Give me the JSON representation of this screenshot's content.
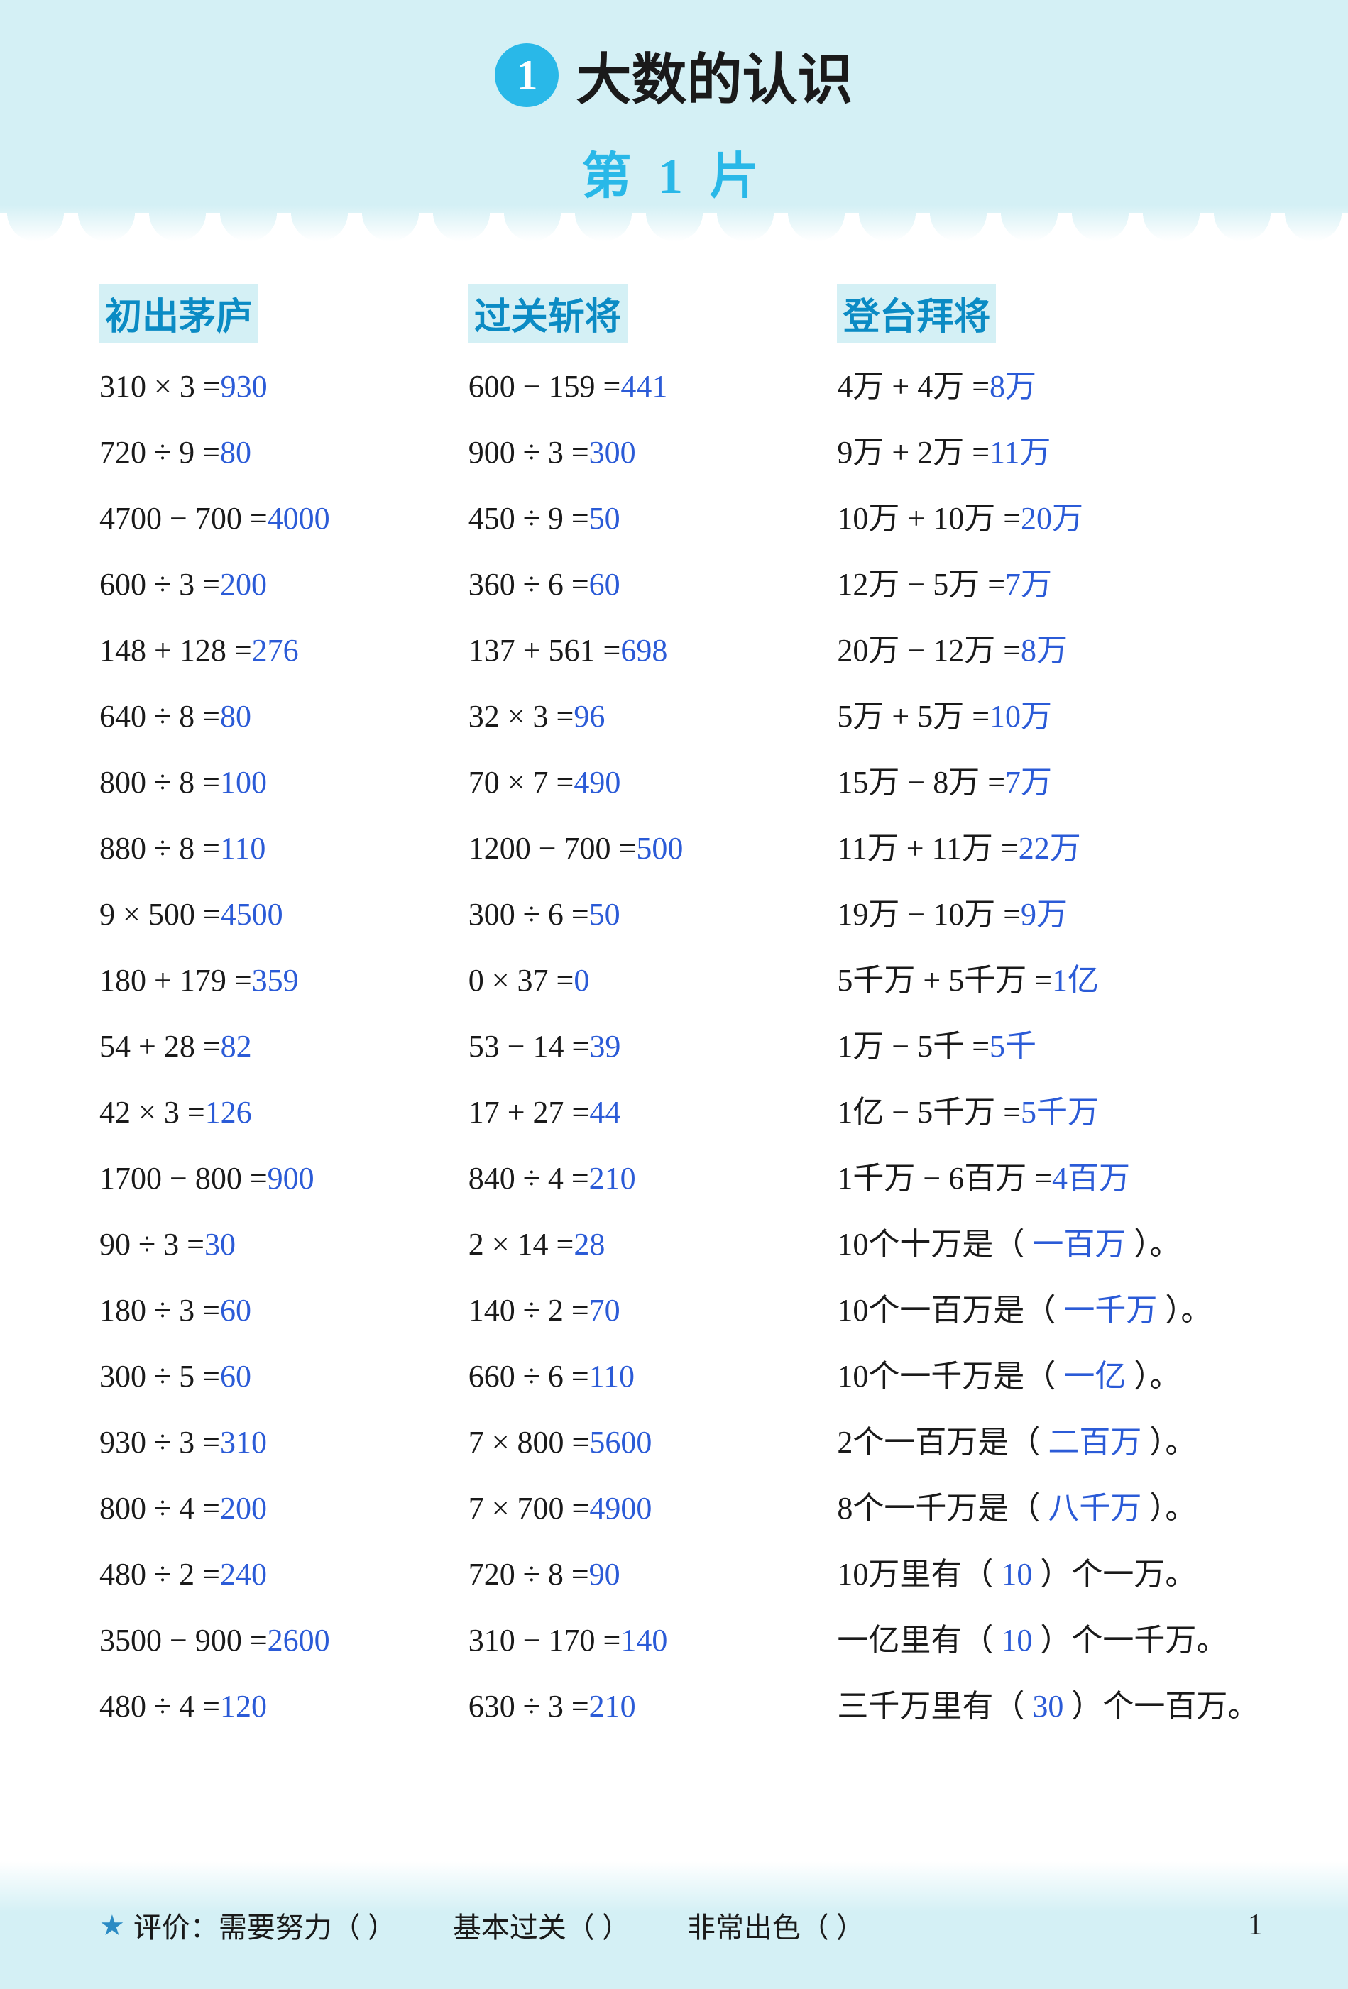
{
  "chapter": {
    "number": "1",
    "title": "大数的认识",
    "subtitle": "第 1 片"
  },
  "columns": {
    "col1": {
      "header": "初出茅庐",
      "rows": [
        {
          "q": "310 × 3 =",
          "a": "930"
        },
        {
          "q": "720 ÷ 9 =",
          "a": "80"
        },
        {
          "q": "4700 − 700 =",
          "a": "4000"
        },
        {
          "q": "600 ÷ 3 =",
          "a": "200"
        },
        {
          "q": "148 + 128 =",
          "a": "276"
        },
        {
          "q": "640 ÷ 8 =",
          "a": "80"
        },
        {
          "q": "800 ÷ 8 =",
          "a": "100"
        },
        {
          "q": "880 ÷ 8 =",
          "a": "110"
        },
        {
          "q": "9 × 500 =",
          "a": "4500"
        },
        {
          "q": "180 + 179 =",
          "a": "359"
        },
        {
          "q": "54 + 28 =",
          "a": "82"
        },
        {
          "q": "42 × 3 =",
          "a": "126"
        },
        {
          "q": "1700 − 800 =",
          "a": "900"
        },
        {
          "q": "90 ÷ 3 =",
          "a": "30"
        },
        {
          "q": "180 ÷ 3 =",
          "a": "60"
        },
        {
          "q": "300 ÷ 5 =",
          "a": "60"
        },
        {
          "q": "930 ÷ 3 =",
          "a": "310"
        },
        {
          "q": "800 ÷ 4 =",
          "a": "200"
        },
        {
          "q": "480 ÷ 2 =",
          "a": "240"
        },
        {
          "q": "3500 − 900 =",
          "a": "2600"
        },
        {
          "q": "480 ÷ 4 =",
          "a": "120"
        }
      ]
    },
    "col2": {
      "header": "过关斩将",
      "rows": [
        {
          "q": "600 − 159 =",
          "a": "441"
        },
        {
          "q": "900 ÷ 3 =",
          "a": "300"
        },
        {
          "q": "450 ÷ 9 =",
          "a": "50"
        },
        {
          "q": "360 ÷ 6 =",
          "a": "60"
        },
        {
          "q": "137 + 561 =",
          "a": "698"
        },
        {
          "q": "32 × 3 =",
          "a": "96"
        },
        {
          "q": "70 × 7 =",
          "a": "490"
        },
        {
          "q": "1200 − 700 =",
          "a": "500"
        },
        {
          "q": "300 ÷ 6 =",
          "a": "50"
        },
        {
          "q": "0 × 37 =",
          "a": "0"
        },
        {
          "q": "53 − 14 =",
          "a": "39"
        },
        {
          "q": "17 + 27 =",
          "a": "44"
        },
        {
          "q": "840 ÷ 4 =",
          "a": "210"
        },
        {
          "q": "2 × 14 =",
          "a": "28"
        },
        {
          "q": "140 ÷ 2 =",
          "a": "70"
        },
        {
          "q": "660 ÷ 6 =",
          "a": "110"
        },
        {
          "q": "7 × 800 =",
          "a": "5600"
        },
        {
          "q": "7 × 700 =",
          "a": "4900"
        },
        {
          "q": "720 ÷ 8 =",
          "a": "90"
        },
        {
          "q": "310 − 170 =",
          "a": "140"
        },
        {
          "q": "630 ÷ 3 =",
          "a": "210"
        }
      ]
    },
    "col3": {
      "header": "登台拜将",
      "rows": [
        {
          "type": "eq",
          "q": "4万 + 4万 =",
          "a": "8万"
        },
        {
          "type": "eq",
          "q": "9万 + 2万 =",
          "a": "11万"
        },
        {
          "type": "eq",
          "q": "10万 + 10万 =",
          "a": "20万"
        },
        {
          "type": "eq",
          "q": "12万 − 5万 =",
          "a": "7万"
        },
        {
          "type": "eq",
          "q": "20万 − 12万 =",
          "a": "8万"
        },
        {
          "type": "eq",
          "q": "5万 + 5万 =",
          "a": "10万"
        },
        {
          "type": "eq",
          "q": "15万 − 8万 =",
          "a": "7万"
        },
        {
          "type": "eq",
          "q": "11万 + 11万 =",
          "a": "22万"
        },
        {
          "type": "eq",
          "q": "19万 − 10万 =",
          "a": "9万"
        },
        {
          "type": "eq",
          "q": "5千万 + 5千万 =",
          "a": "1亿"
        },
        {
          "type": "eq",
          "q": "1万 − 5千 =",
          "a": "5千"
        },
        {
          "type": "eq",
          "q": "1亿 − 5千万 =",
          "a": "5千万"
        },
        {
          "type": "eq",
          "q": "1千万 − 6百万 =",
          "a": "4百万"
        },
        {
          "type": "fill",
          "pre": "10个十万是（",
          "a": "一百万",
          "post": "）。"
        },
        {
          "type": "fill",
          "pre": "10个一百万是（",
          "a": "一千万",
          "post": "）。"
        },
        {
          "type": "fill",
          "pre": "10个一千万是（",
          "a": "一亿",
          "post": "）。"
        },
        {
          "type": "fill",
          "pre": "2个一百万是（",
          "a": "二百万",
          "post": "）。"
        },
        {
          "type": "fill",
          "pre": "8个一千万是（",
          "a": "八千万",
          "post": "）。"
        },
        {
          "type": "fill",
          "pre": "10万里有（",
          "a": "10",
          "post": "）个一万。"
        },
        {
          "type": "fill",
          "pre": "一亿里有（",
          "a": "10",
          "post": "）个一千万。"
        },
        {
          "type": "fill",
          "pre": "三千万里有（",
          "a": "30",
          "post": "）个一百万。"
        }
      ]
    }
  },
  "footer": {
    "label": "评价：",
    "items": [
      {
        "text": "需要努力（",
        "close": "）"
      },
      {
        "text": "基本过关（",
        "close": "）"
      },
      {
        "text": "非常出色（",
        "close": "）"
      }
    ],
    "page": "1"
  },
  "colors": {
    "header_bg": "#d4f0f5",
    "badge_bg": "#29b8e8",
    "subtitle": "#29b8e8",
    "col_header": "#0b8bc4",
    "answer": "#2b5bd7",
    "text": "#1a1a1a"
  }
}
